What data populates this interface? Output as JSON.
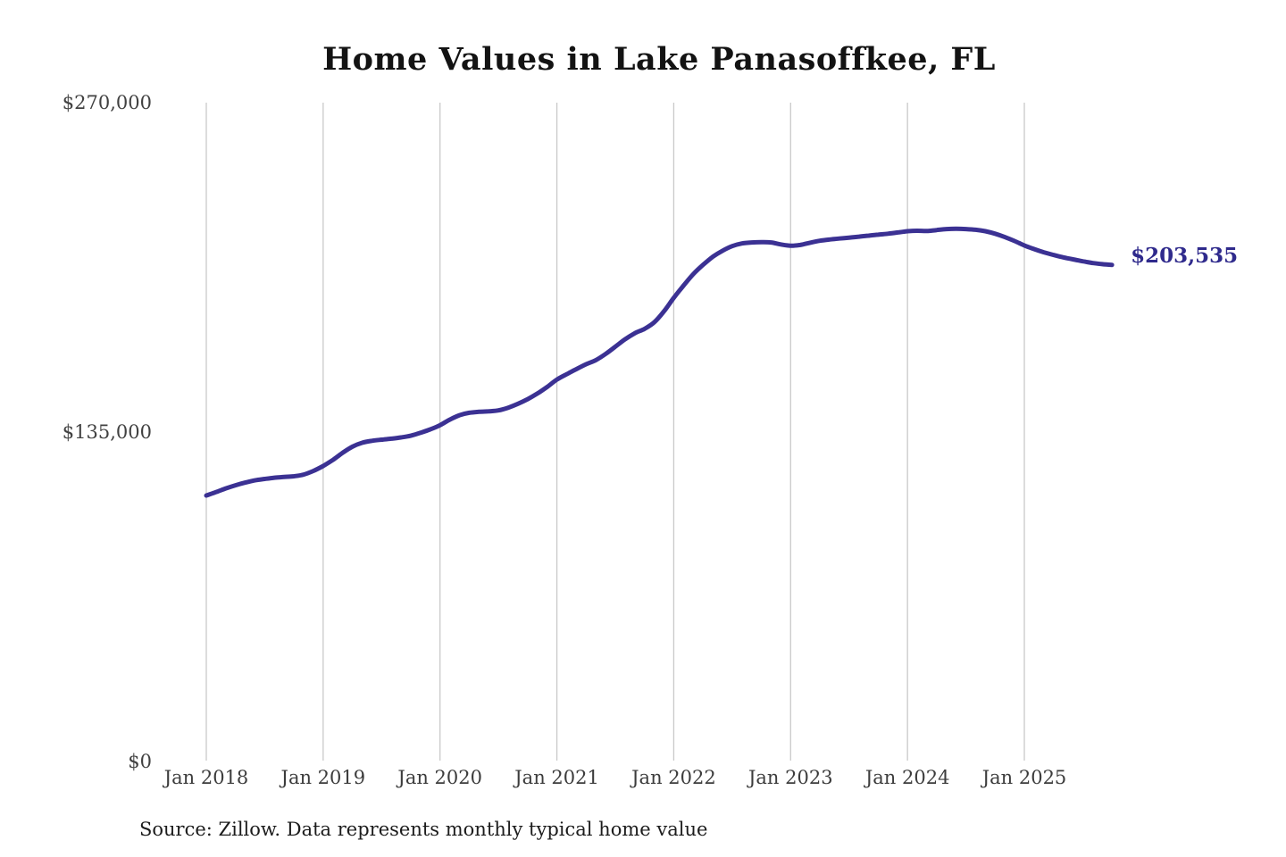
{
  "title": "Home Values in Lake Panasoffkee, FL",
  "source_note": "Source: Zillow. Data represents monthly typical home value",
  "end_label": "$203,535",
  "colors": {
    "line": "#3b3193",
    "end_label": "#2f2a8c",
    "gridline": "#c9c9c9",
    "title": "#131313",
    "axis_label": "#414141",
    "source": "#1c1c1c",
    "background": "#ffffff"
  },
  "chart_data": {
    "type": "line",
    "title": "Home Values in Lake Panasoffkee, FL",
    "xlabel": "",
    "ylabel": "",
    "ylim": [
      0,
      270000
    ],
    "grid": "vertical-only",
    "legend": "none",
    "frequency": "monthly",
    "x_start": "Jan 2018",
    "x_end": "Oct 2025",
    "x_ticks": [
      "Jan 2018",
      "Jan 2019",
      "Jan 2020",
      "Jan 2021",
      "Jan 2022",
      "Jan 2023",
      "Jan 2024",
      "Jan 2025"
    ],
    "y_ticks": [
      {
        "label": "$0",
        "value": 0
      },
      {
        "label": "$135,000",
        "value": 135000
      },
      {
        "label": "$270,000",
        "value": 270000
      }
    ],
    "end_value": 203535,
    "series": [
      {
        "name": "Typical home value",
        "values": [
          109000,
          110400,
          111900,
          113200,
          114300,
          115200,
          115800,
          116300,
          116600,
          116900,
          117600,
          119100,
          121100,
          123600,
          126500,
          129000,
          130600,
          131400,
          131900,
          132300,
          132800,
          133500,
          134700,
          136100,
          137800,
          140100,
          141900,
          142900,
          143300,
          143500,
          143900,
          145000,
          146600,
          148500,
          150800,
          153500,
          156500,
          158700,
          160800,
          162800,
          164500,
          167000,
          170000,
          173000,
          175500,
          177300,
          180000,
          184500,
          190000,
          195000,
          199700,
          203500,
          206800,
          209300,
          211200,
          212300,
          212700,
          212800,
          212700,
          211900,
          211400,
          211700,
          212600,
          213400,
          213900,
          214300,
          214700,
          215100,
          215500,
          215900,
          216300,
          216800,
          217300,
          217500,
          217400,
          217800,
          218200,
          218300,
          218200,
          217900,
          217300,
          216300,
          214900,
          213300,
          211500,
          210000,
          208700,
          207600,
          206600,
          205800,
          205000,
          204300,
          203800,
          203535
        ]
      }
    ]
  }
}
